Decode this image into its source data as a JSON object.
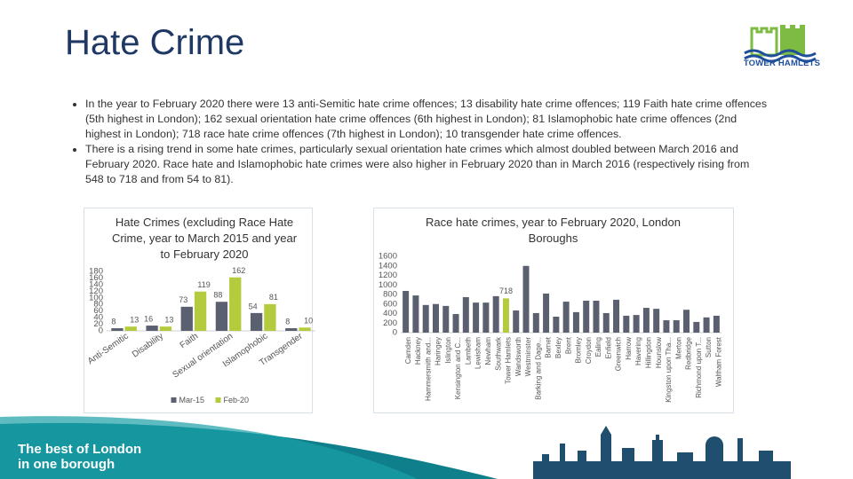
{
  "header": {
    "title": "Hate Crime",
    "logo_text": "TOWER HAMLETS"
  },
  "bullets": [
    "In the year to February 2020 there were 13 anti-Semitic hate crime offences; 13 disability hate crime offences; 119 Faith hate crime offences (5th highest in London); 162 sexual orientation hate crime offences (6th highest in London); 81 Islamophobic hate crime offences (2nd highest in London); 718 race hate crime offences (7th highest in London); 10 transgender hate crime offences.",
    "There is a rising trend in some hate crimes, particularly sexual orientation hate crimes which almost doubled between March 2016 and February 2020. Race hate and Islamophobic hate crimes were also higher in February 2020 than in March 2016 (respectively rising from 548 to 718 and from 54 to 81)."
  ],
  "footer": {
    "lines": [
      "The best of London",
      "in one borough"
    ]
  },
  "chart_data": [
    {
      "type": "bar",
      "title": "Hate Crimes (excluding Race Hate Crime, year to March 2015 and year to February 2020",
      "categories": [
        "Anti-Semitic",
        "Disability",
        "Faith",
        "Sexual orientation",
        "Islamophobic",
        "Transgender"
      ],
      "series": [
        {
          "name": "Mar-15",
          "color": "#5b6070",
          "values": [
            8,
            16,
            73,
            88,
            54,
            8
          ]
        },
        {
          "name": "Feb-20",
          "color": "#b3cb3c",
          "values": [
            13,
            13,
            119,
            162,
            81,
            10
          ]
        }
      ],
      "ylim": [
        0,
        180
      ],
      "yticks": [
        0,
        20,
        40,
        60,
        80,
        100,
        120,
        140,
        160,
        180
      ],
      "legend": "bottom"
    },
    {
      "type": "bar",
      "title": "Race hate crimes, year to February 2020, London Boroughs",
      "categories": [
        "Camden",
        "Hackney",
        "Hammersmith and...",
        "Haringey",
        "Islington",
        "Kensington and C...",
        "Lambeth",
        "Lewisham",
        "Newham",
        "Southwark",
        "Tower Hamlets",
        "Wandsworth",
        "Westminster",
        "Barking and Dage...",
        "Barnet",
        "Bexley",
        "Brent",
        "Bromley",
        "Croydon",
        "Ealing",
        "Enfield",
        "Greenwich",
        "Harrow",
        "Havering",
        "Hillingdon",
        "Hounslow",
        "Kingston upon Tha...",
        "Merton",
        "Redbridge",
        "Richmond upon T...",
        "Sutton",
        "Waltham Forest"
      ],
      "values": [
        875,
        780,
        580,
        600,
        560,
        390,
        745,
        630,
        630,
        765,
        718,
        465,
        1400,
        410,
        820,
        335,
        650,
        430,
        670,
        670,
        410,
        690,
        355,
        370,
        520,
        500,
        260,
        260,
        480,
        225,
        320,
        355
      ],
      "value_labels": [
        null,
        null,
        null,
        null,
        null,
        null,
        null,
        null,
        null,
        null,
        "718",
        null,
        null,
        null,
        null,
        null,
        null,
        null,
        null,
        null,
        null,
        null,
        null,
        null,
        null,
        null,
        null,
        null,
        null,
        null,
        null,
        null
      ],
      "colors": [
        "#5b6070",
        "#5b6070",
        "#5b6070",
        "#5b6070",
        "#5b6070",
        "#5b6070",
        "#5b6070",
        "#5b6070",
        "#5b6070",
        "#5b6070",
        "#b3cb3c",
        "#5b6070",
        "#5b6070",
        "#5b6070",
        "#5b6070",
        "#5b6070",
        "#5b6070",
        "#5b6070",
        "#5b6070",
        "#5b6070",
        "#5b6070",
        "#5b6070",
        "#5b6070",
        "#5b6070",
        "#5b6070",
        "#5b6070",
        "#5b6070",
        "#5b6070",
        "#5b6070",
        "#5b6070",
        "#5b6070",
        "#5b6070"
      ],
      "ylim": [
        0,
        1600
      ],
      "yticks": [
        0,
        200,
        400,
        600,
        800,
        1000,
        1200,
        1400,
        1600
      ]
    }
  ]
}
